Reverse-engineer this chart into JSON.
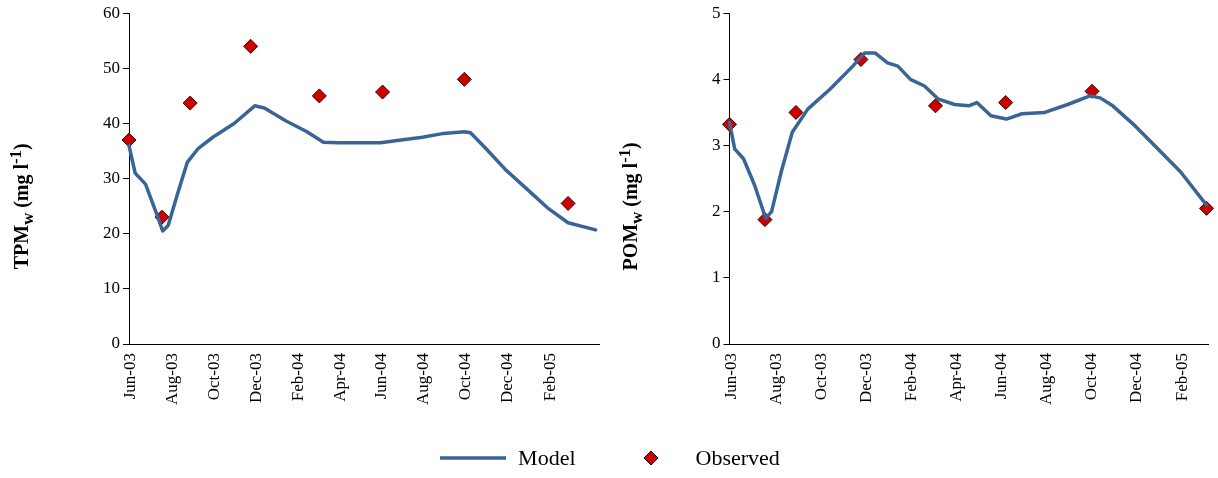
{
  "chart_data": [
    {
      "type": "line",
      "ylabel": "TPM$_{w}$ (mg l$^{-1}$)",
      "xlim": [
        "2003-06-01",
        "2005-04-15"
      ],
      "ylim": [
        0,
        60
      ],
      "yticks": [
        0,
        10,
        20,
        30,
        40,
        50,
        60
      ],
      "xticks": [
        {
          "value": "2003-06-01",
          "label": "Jun-03"
        },
        {
          "value": "2003-08-01",
          "label": "Aug-03"
        },
        {
          "value": "2003-10-01",
          "label": "Oct-03"
        },
        {
          "value": "2003-12-01",
          "label": "Dec-03"
        },
        {
          "value": "2004-02-01",
          "label": "Feb-04"
        },
        {
          "value": "2004-04-01",
          "label": "Apr-04"
        },
        {
          "value": "2004-06-01",
          "label": "Jun-04"
        },
        {
          "value": "2004-08-01",
          "label": "Aug-04"
        },
        {
          "value": "2004-10-01",
          "label": "Oct-04"
        },
        {
          "value": "2004-12-01",
          "label": "Dec-04"
        },
        {
          "value": "2005-02-01",
          "label": "Feb-05"
        }
      ],
      "grid": false,
      "legend": "bottom",
      "series": [
        {
          "name": "Model",
          "type": "line",
          "color": "#3b6496",
          "marker": "none",
          "line_style": "solid",
          "x": [
            "2003-06-01",
            "2003-06-10",
            "2003-06-25",
            "2003-07-10",
            "2003-07-20",
            "2003-07-28",
            "2003-08-10",
            "2003-08-25",
            "2003-09-10",
            "2003-10-01",
            "2003-11-01",
            "2003-12-01",
            "2003-12-15",
            "2004-01-15",
            "2004-02-15",
            "2004-03-10",
            "2004-04-01",
            "2004-06-01",
            "2004-07-01",
            "2004-08-01",
            "2004-09-01",
            "2004-10-01",
            "2004-10-10",
            "2004-11-01",
            "2004-12-01",
            "2005-01-01",
            "2005-02-01",
            "2005-03-01",
            "2005-04-10"
          ],
          "values": [
            36,
            31,
            29,
            24,
            20.5,
            21.5,
            27,
            33,
            35.5,
            37.5,
            40,
            43.2,
            42.8,
            40.5,
            38.5,
            36.6,
            36.5,
            36.5,
            37,
            37.5,
            38.2,
            38.5,
            38.3,
            35.5,
            31.5,
            28,
            24.5,
            22,
            20.7
          ]
        },
        {
          "name": "Observed",
          "type": "scatter",
          "color": "#cc0000",
          "marker": "diamond",
          "x": [
            "2003-06-01",
            "2003-07-19",
            "2003-08-29",
            "2003-11-25",
            "2004-03-04",
            "2004-06-04",
            "2004-10-01",
            "2005-03-01"
          ],
          "values": [
            37,
            23,
            43.7,
            54,
            45,
            45.7,
            48,
            25.5
          ]
        }
      ]
    },
    {
      "type": "line",
      "ylabel": "POM$_{w}$ (mg l$^{-1}$)",
      "xlim": [
        "2003-06-01",
        "2005-03-10"
      ],
      "ylim": [
        0,
        5
      ],
      "yticks": [
        0,
        1,
        2,
        3,
        4,
        5
      ],
      "xticks": [
        {
          "value": "2003-06-01",
          "label": "Jun-03"
        },
        {
          "value": "2003-08-01",
          "label": "Aug-03"
        },
        {
          "value": "2003-10-01",
          "label": "Oct-03"
        },
        {
          "value": "2003-12-01",
          "label": "Dec-03"
        },
        {
          "value": "2004-02-01",
          "label": "Feb-04"
        },
        {
          "value": "2004-04-01",
          "label": "Apr-04"
        },
        {
          "value": "2004-06-01",
          "label": "Jun-04"
        },
        {
          "value": "2004-08-01",
          "label": "Aug-04"
        },
        {
          "value": "2004-10-01",
          "label": "Oct-04"
        },
        {
          "value": "2004-12-01",
          "label": "Dec-04"
        },
        {
          "value": "2005-02-01",
          "label": "Feb-05"
        }
      ],
      "grid": false,
      "series": [
        {
          "type": "line",
          "color": "#3b6496",
          "marker": "none",
          "line_style": "solid",
          "x": [
            "2003-06-01",
            "2003-06-08",
            "2003-06-20",
            "2003-07-05",
            "2003-07-20",
            "2003-07-28",
            "2003-08-10",
            "2003-08-25",
            "2003-09-15",
            "2003-10-15",
            "2003-11-15",
            "2003-12-01",
            "2003-12-15",
            "2004-01-01",
            "2004-01-15",
            "2004-02-01",
            "2004-02-20",
            "2004-03-10",
            "2004-04-01",
            "2004-04-20",
            "2004-05-01",
            "2004-05-20",
            "2004-06-10",
            "2004-07-01",
            "2004-08-01",
            "2004-09-01",
            "2004-10-01",
            "2004-10-15",
            "2004-11-01",
            "2004-12-01",
            "2005-01-01",
            "2005-02-01",
            "2005-03-08"
          ],
          "values": [
            3.35,
            2.95,
            2.8,
            2.4,
            1.9,
            2.0,
            2.6,
            3.2,
            3.55,
            3.85,
            4.2,
            4.4,
            4.4,
            4.25,
            4.2,
            4.0,
            3.9,
            3.7,
            3.62,
            3.6,
            3.65,
            3.45,
            3.4,
            3.48,
            3.5,
            3.62,
            3.75,
            3.72,
            3.6,
            3.3,
            2.95,
            2.6,
            2.1
          ]
        },
        {
          "type": "scatter",
          "color": "#cc0000",
          "marker": "diamond",
          "x": [
            "2003-06-01",
            "2003-07-19",
            "2003-08-30",
            "2003-11-26",
            "2004-03-06",
            "2004-06-09",
            "2004-10-04",
            "2005-03-08"
          ],
          "values": [
            3.32,
            1.88,
            3.5,
            4.3,
            3.6,
            3.65,
            3.82,
            2.05
          ]
        }
      ]
    }
  ]
}
